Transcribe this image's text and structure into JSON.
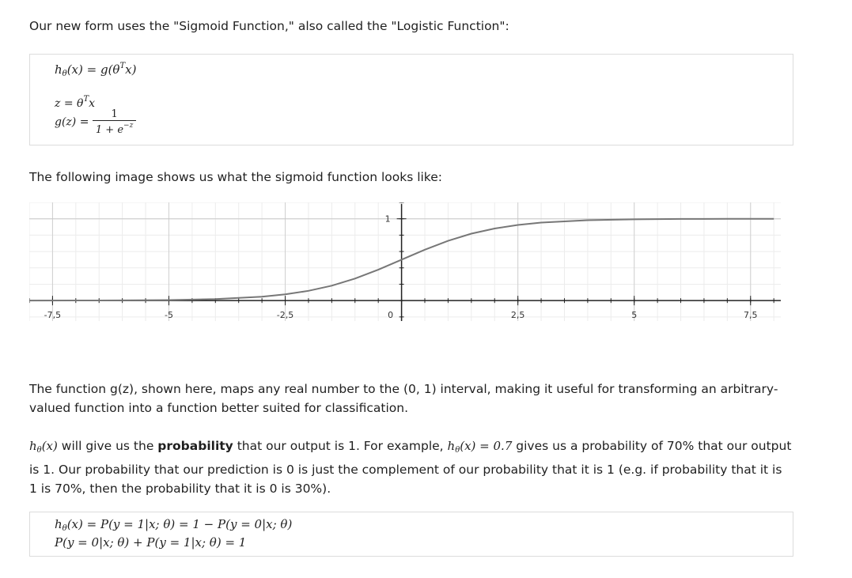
{
  "intro_text": "Our new form uses the \"Sigmoid Function,\" also called the \"Logistic Function\":",
  "formula_box_1": {
    "h_lhs": "h",
    "h_sub": "θ",
    "h_arg": "(x) = g(θ",
    "h_sup": "T",
    "h_tail": "x)",
    "z_line_pre": "z = θ",
    "z_sup": "T",
    "z_tail": "x",
    "g_lhs": "g(z) =",
    "g_num": "1",
    "g_den_pre": "1 + e",
    "g_den_sup": "−z"
  },
  "figure_caption": "The following image shows us what the sigmoid function looks like:",
  "chart_data": {
    "type": "line",
    "title": "",
    "xlabel": "",
    "ylabel": "",
    "xlim": [
      -8,
      8.15
    ],
    "ylim": [
      -0.25,
      1.2
    ],
    "x_ticks": [
      -7.5,
      -5,
      -2.5,
      0,
      2.5,
      5,
      7.5
    ],
    "x_tick_labels": [
      "-7,5",
      "-5",
      "-2,5",
      "0",
      "2,5",
      "5",
      "7,5"
    ],
    "y_tick_labels": [
      {
        "value": 1,
        "label": "1"
      }
    ],
    "grid": true,
    "series": [
      {
        "function": "1/(1+e^-z)",
        "x": [
          -8,
          -7,
          -6,
          -5,
          -4,
          -3,
          -2.5,
          -2,
          -1.5,
          -1,
          -0.5,
          0,
          0.5,
          1,
          1.5,
          2,
          2.5,
          3,
          4,
          5,
          6,
          7,
          8
        ],
        "values": [
          0.0003,
          0.0009,
          0.0025,
          0.0067,
          0.018,
          0.047,
          0.076,
          0.119,
          0.182,
          0.269,
          0.378,
          0.5,
          0.622,
          0.731,
          0.818,
          0.881,
          0.924,
          0.953,
          0.982,
          0.993,
          0.998,
          0.999,
          1.0
        ],
        "color": "#777777"
      }
    ]
  },
  "para_1": "The function g(z), shown here, maps any real number to the (0, 1) interval, making it useful for transforming an arbitrary-valued function into a function better suited for classification.",
  "para_2": {
    "h_math": "h",
    "h_sub": "θ",
    "h_arg": "(x)",
    "text_a": " will give us the ",
    "bold": "probability",
    "text_b": " that our output is 1. For example, ",
    "eq_math": "h",
    "eq_sub": "θ",
    "eq_arg": "(x) = 0.7",
    "text_c": " gives us a probability of 70% that our output is 1. Our probability that our prediction is 0 is just the complement of our probability that it is 1 (e.g. if probability that it is 1 is 70%, then the probability that it is 0 is 30%)."
  },
  "formula_box_2": {
    "line1_h": "h",
    "line1_sub": "θ",
    "line1_rest": "(x) = P(y = 1|x; θ) = 1 − P(y = 0|x; θ)",
    "line2": "P(y = 0|x; θ) + P(y = 1|x; θ) = 1"
  }
}
